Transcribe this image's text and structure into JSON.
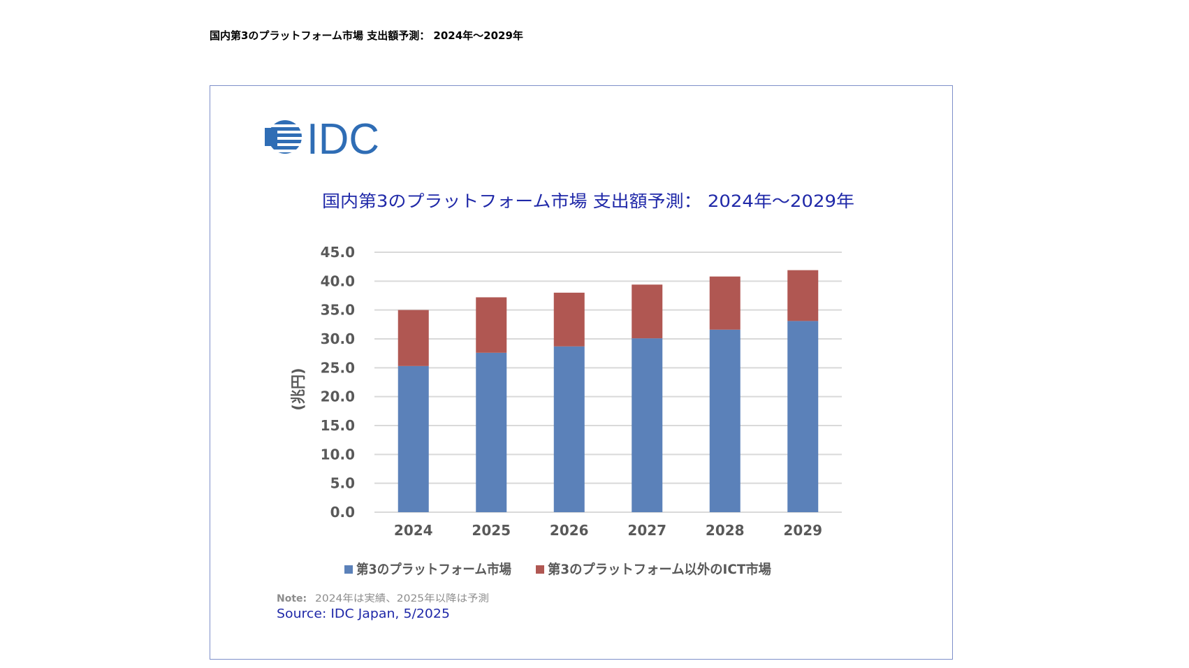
{
  "page": {
    "heading": "国内第3のプラットフォーム市場 支出額予測： 2024年～2029年"
  },
  "figure": {
    "logo_text": "IDC",
    "note_label": "Note:",
    "note_text": "2024年は実績、2025年以降は予測",
    "source": "Source: IDC Japan, 5/2025"
  },
  "colors": {
    "series_1": "#5b81b9",
    "series_2": "#b05752",
    "title": "#1f28a8",
    "axis_text": "#595959",
    "logo": "#2f6db5",
    "frame": "#7e8fc9"
  },
  "chart_data": {
    "type": "bar",
    "stacked": true,
    "title": "国内第3のプラットフォーム市場 支出額予測： 2024年～2029年",
    "ylabel": "(兆円)",
    "xlabel": "",
    "ylim": [
      0,
      45
    ],
    "ytick_step": 5,
    "yticks": [
      "0.0",
      "5.0",
      "10.0",
      "15.0",
      "20.0",
      "25.0",
      "30.0",
      "35.0",
      "40.0",
      "45.0"
    ],
    "grid": true,
    "legend_position": "bottom",
    "categories": [
      "2024",
      "2025",
      "2026",
      "2027",
      "2028",
      "2029"
    ],
    "series": [
      {
        "name": "第3のプラットフォーム市場",
        "values": [
          25.3,
          27.6,
          28.7,
          30.1,
          31.6,
          33.1
        ]
      },
      {
        "name": "第3のプラットフォーム以外のICT市場",
        "values": [
          9.7,
          9.6,
          9.3,
          9.3,
          9.2,
          8.8
        ]
      }
    ]
  }
}
